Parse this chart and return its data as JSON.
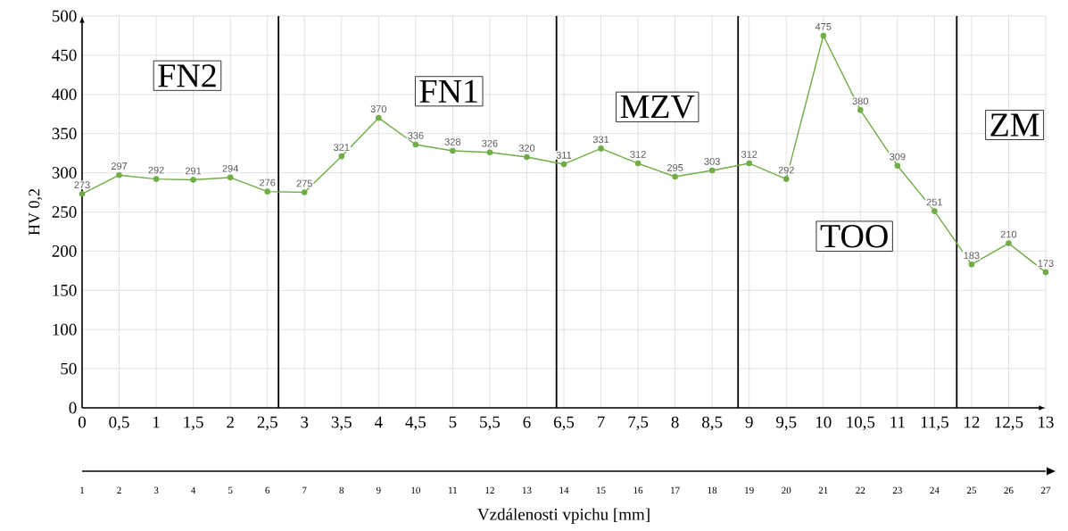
{
  "chart_data": {
    "type": "line",
    "xlabel": "Vzdálenosti vpichu [mm]",
    "ylabel": "HV 0,2",
    "x": [
      0,
      0.5,
      1,
      1.5,
      2,
      2.5,
      3,
      3.5,
      4,
      4.5,
      5,
      5.5,
      6,
      6.5,
      7,
      7.5,
      8,
      8.5,
      9,
      9.5,
      10,
      10.5,
      11,
      11.5,
      12,
      12.5,
      13
    ],
    "series": [
      {
        "color": "#70ad47",
        "values": [
          273,
          297,
          292,
          291,
          294,
          276,
          275,
          321,
          370,
          336,
          328,
          326,
          320,
          311,
          331,
          312,
          295,
          303,
          312,
          292,
          475,
          380,
          309,
          251,
          183,
          210,
          173
        ]
      }
    ],
    "data_labels": true,
    "marker": "circle",
    "line_style": "solid",
    "grid": true,
    "xlim": [
      0,
      13
    ],
    "ylim": [
      0,
      500
    ],
    "xticks": [
      0,
      {
        "value": 0.5,
        "label": "0,5"
      },
      1,
      {
        "value": 1.5,
        "label": "1,5"
      },
      2,
      {
        "value": 2.5,
        "label": "2,5"
      },
      3,
      {
        "value": 3.5,
        "label": "3,5"
      },
      4,
      {
        "value": 4.5,
        "label": "4,5"
      },
      5,
      {
        "value": 5.5,
        "label": "5,5"
      },
      6,
      {
        "value": 6.5,
        "label": "6,5"
      },
      7,
      {
        "value": 7.5,
        "label": "7,5"
      },
      8,
      {
        "value": 8.5,
        "label": "8,5"
      },
      9,
      {
        "value": 9.5,
        "label": "9,5"
      },
      10,
      {
        "value": 10.5,
        "label": "10,5"
      },
      11,
      {
        "value": 11.5,
        "label": "11,5"
      },
      12,
      {
        "value": 12.5,
        "label": "12,5"
      },
      13
    ],
    "yticks": [
      0,
      50,
      100,
      150,
      200,
      250,
      300,
      350,
      400,
      450,
      500
    ],
    "x2lim": [
      1,
      27
    ],
    "x2ticks": [
      1,
      2,
      3,
      4,
      5,
      6,
      7,
      8,
      9,
      10,
      11,
      12,
      13,
      14,
      15,
      16,
      17,
      18,
      19,
      20,
      21,
      22,
      23,
      24,
      25,
      26,
      27
    ],
    "ref_lines": [
      {
        "axis": "x",
        "value": 2.65,
        "color": "#000000"
      },
      {
        "axis": "x",
        "value": 6.4,
        "color": "#000000"
      },
      {
        "axis": "x",
        "value": 8.85,
        "color": "#000000"
      },
      {
        "axis": "x",
        "value": 11.8,
        "color": "#000000"
      }
    ],
    "annotations": [
      "FN2",
      "FN1",
      "MZV",
      "TOO",
      "ZM"
    ]
  }
}
